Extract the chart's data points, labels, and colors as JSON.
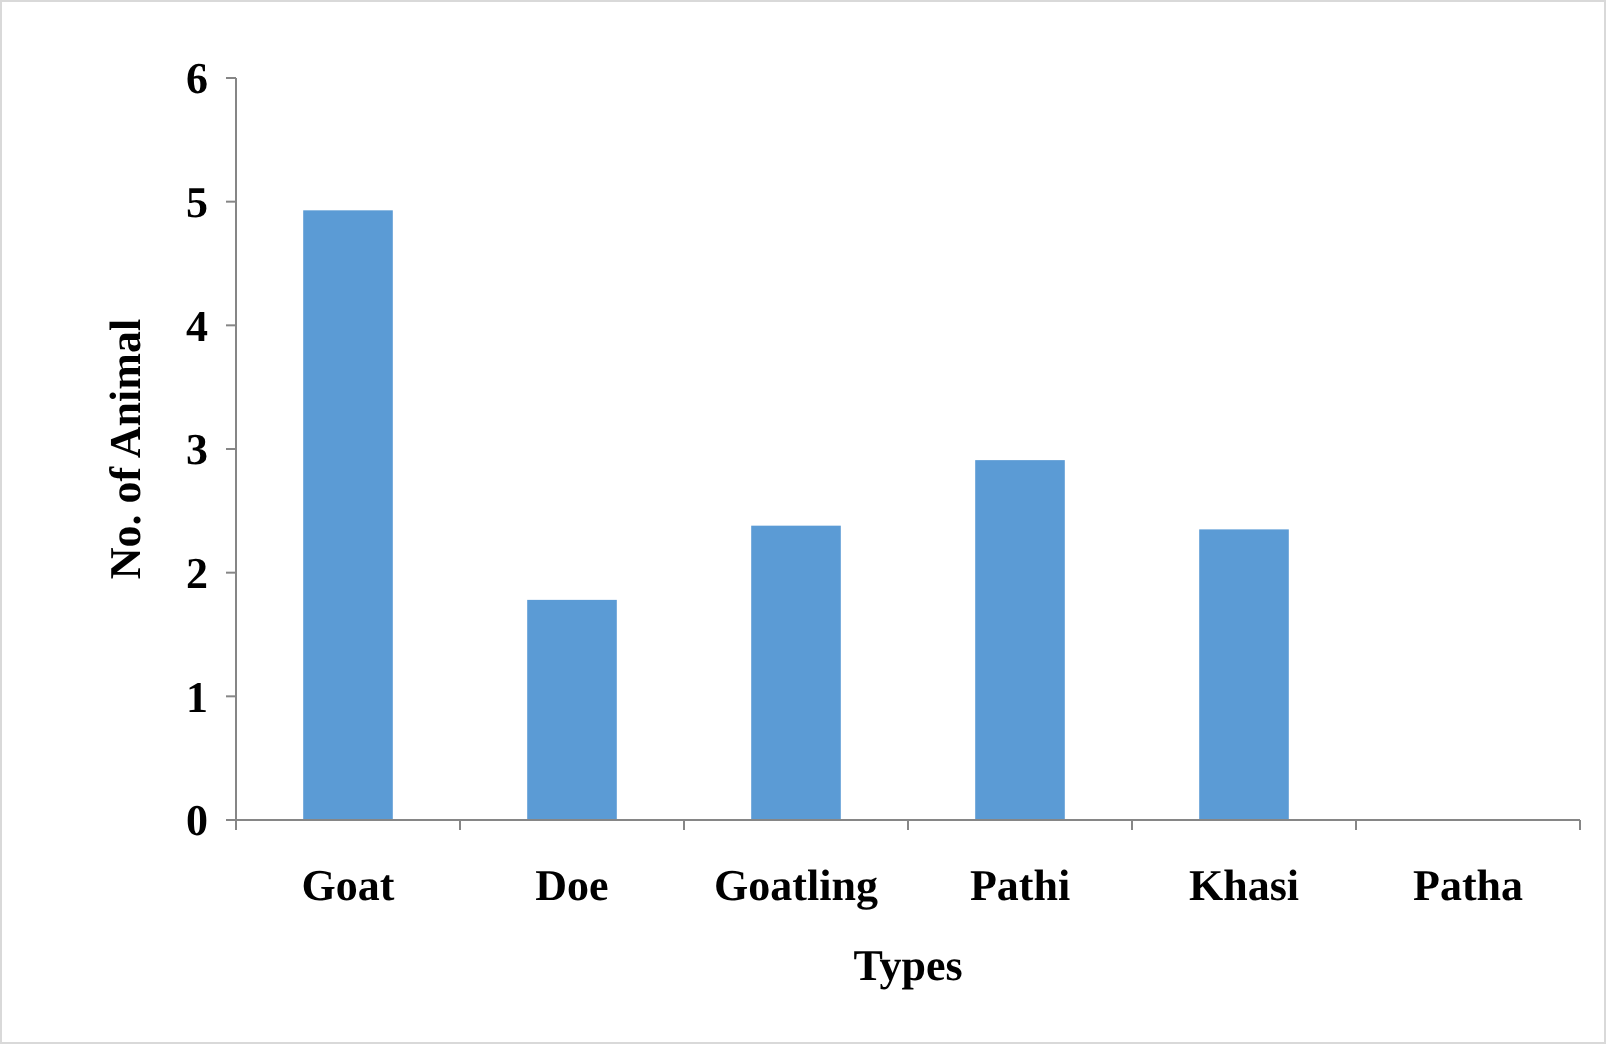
{
  "chart_data": {
    "type": "bar",
    "xlabel": "Types",
    "ylabel": "No. of Animal",
    "categories": [
      "Goat",
      "Doe",
      "Goatling",
      "Pathi",
      "Khasi",
      "Patha"
    ],
    "values": [
      4.93,
      1.78,
      2.38,
      2.91,
      2.35,
      0
    ],
    "color": "#5b9bd5",
    "ylim": [
      0,
      6
    ],
    "yticks": [
      0,
      1,
      2,
      3,
      4,
      5,
      6
    ],
    "grid": false
  }
}
